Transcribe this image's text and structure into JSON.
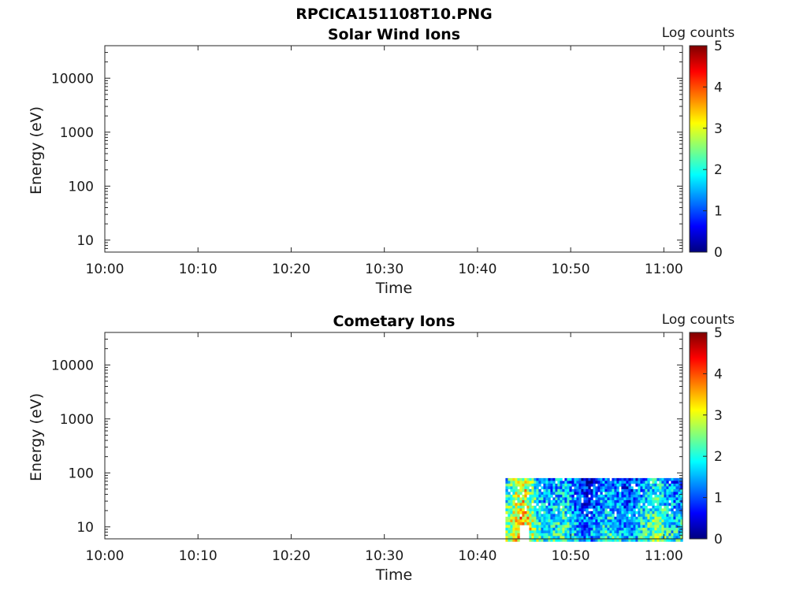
{
  "figure_title": "RPCICA151108T10.PNG",
  "colors": {
    "colormap": [
      "#00007f",
      "#0000ff",
      "#007fff",
      "#00ffff",
      "#7fff7f",
      "#ffff00",
      "#ff7f00",
      "#ff0000",
      "#7f0000"
    ]
  },
  "chart_data": [
    {
      "type": "heatmap",
      "title": "Solar Wind Ions",
      "xlabel": "Time",
      "ylabel": "Energy (eV)",
      "x_ticks": [
        "10:00",
        "10:10",
        "10:20",
        "10:30",
        "10:40",
        "10:50",
        "11:00"
      ],
      "xlim": [
        "10:00",
        "11:02"
      ],
      "y_scale": "log",
      "y_ticks": [
        "10",
        "100",
        "1000",
        "10000"
      ],
      "ylim": [
        6,
        40000
      ],
      "colorbar": {
        "label": "Log counts",
        "ticks": [
          "0",
          "1",
          "2",
          "3",
          "4",
          "5"
        ],
        "range": [
          0,
          5
        ]
      },
      "data_region": null,
      "note_empty": true
    },
    {
      "type": "heatmap",
      "title": "Cometary Ions",
      "xlabel": "Time",
      "ylabel": "Energy (eV)",
      "x_ticks": [
        "10:00",
        "10:10",
        "10:20",
        "10:30",
        "10:40",
        "10:50",
        "11:00"
      ],
      "xlim": [
        "10:00",
        "11:02"
      ],
      "y_scale": "log",
      "y_ticks": [
        "10",
        "100",
        "1000",
        "10000"
      ],
      "ylim": [
        6,
        40000
      ],
      "colorbar": {
        "label": "Log counts",
        "ticks": [
          "0",
          "1",
          "2",
          "3",
          "4",
          "5"
        ],
        "range": [
          0,
          5
        ]
      },
      "data_region": {
        "time_start": "10:43",
        "time_end": "11:02",
        "energy_min": 6,
        "energy_max": 80,
        "typical_log_counts": [
          0.5,
          2.5
        ],
        "peak_log_counts": 3.8,
        "peak_time": "10:45"
      }
    }
  ]
}
